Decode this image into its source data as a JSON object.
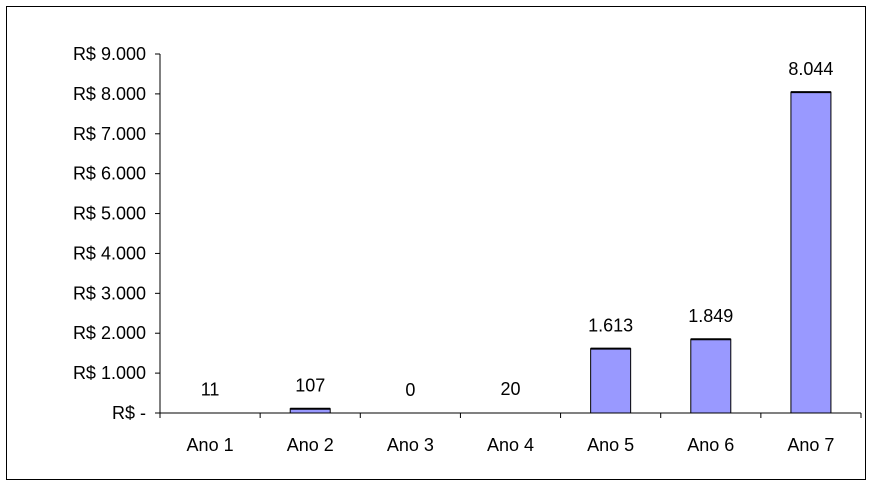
{
  "chart_data": {
    "type": "bar",
    "title": "",
    "xlabel": "",
    "ylabel": "",
    "categories": [
      "Ano 1",
      "Ano 2",
      "Ano 3",
      "Ano 4",
      "Ano 5",
      "Ano 6",
      "Ano 7"
    ],
    "values": [
      11,
      107,
      0,
      20,
      1613,
      1849,
      8044
    ],
    "data_labels": [
      "11",
      "107",
      "0",
      "20",
      "1.613",
      "1.849",
      "8.044"
    ],
    "ylim": [
      0,
      9000
    ],
    "yticks": [
      0,
      1000,
      2000,
      3000,
      4000,
      5000,
      6000,
      7000,
      8000,
      9000
    ],
    "ytick_labels": [
      "R$ -",
      "R$ 1.000",
      "R$ 2.000",
      "R$ 3.000",
      "R$ 4.000",
      "R$ 5.000",
      "R$ 6.000",
      "R$ 7.000",
      "R$ 8.000",
      "R$ 9.000"
    ],
    "grid": false,
    "legend": "none",
    "colors": {
      "bar_fill": "#9999FF",
      "bar_stroke": "#000000",
      "axis": "#000000"
    }
  }
}
